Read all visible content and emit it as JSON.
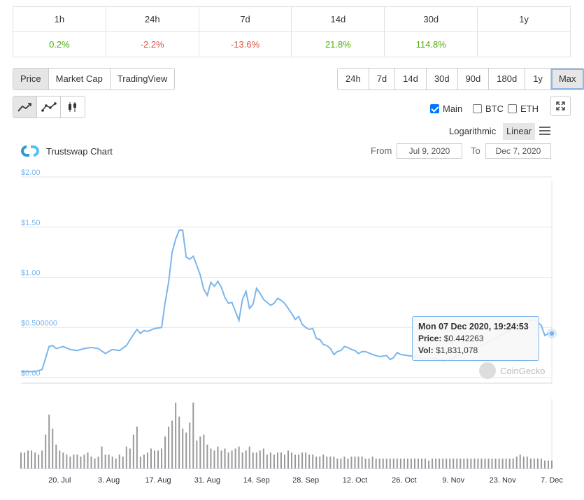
{
  "performance": {
    "headers": [
      "1h",
      "24h",
      "7d",
      "14d",
      "30d",
      "1y"
    ],
    "values": [
      "0.2%",
      "-2.2%",
      "-13.6%",
      "21.8%",
      "114.8%",
      ""
    ],
    "directions": [
      "up",
      "down",
      "down",
      "up",
      "up",
      "none"
    ]
  },
  "view_tabs": [
    "Price",
    "Market Cap",
    "TradingView"
  ],
  "range_tabs": [
    "24h",
    "7d",
    "14d",
    "30d",
    "90d",
    "180d",
    "1y",
    "Max"
  ],
  "chart_type_icons": [
    "line-chart-icon",
    "line-markers-icon",
    "candlestick-icon"
  ],
  "checkboxes": [
    {
      "label": "Main",
      "checked": true
    },
    {
      "label": "BTC",
      "checked": false
    },
    {
      "label": "ETH",
      "checked": false
    }
  ],
  "scale": {
    "log_label": "Logarithmic",
    "linear_label": "Linear"
  },
  "chart_title": "Trustswap Chart",
  "from_label": "From",
  "to_label": "To",
  "from_date": "Jul 9, 2020",
  "to_date": "Dec 7, 2020",
  "watermark": "CoinGecko",
  "tooltip": {
    "date": "Mon 07 Dec 2020, 19:24:53",
    "price_label": "Price:",
    "price": "$0.442263",
    "vol_label": "Vol:",
    "vol": "$1,831,078"
  },
  "colors": {
    "line": "#7cb5ec",
    "volume": "#999999",
    "up": "#4eaf0a",
    "down": "#e15241"
  },
  "chart_data": {
    "type": "line",
    "ylim": [
      0,
      2.0
    ],
    "y_tick_labels": [
      "$0.00",
      "$0.500000",
      "$1.00",
      "$1.50",
      "$2.00"
    ],
    "y_tick_values": [
      0,
      0.5,
      1.0,
      1.5,
      2.0
    ],
    "x_tick_labels": [
      "20. Jul",
      "3. Aug",
      "17. Aug",
      "31. Aug",
      "14. Sep",
      "28. Sep",
      "12. Oct",
      "26. Oct",
      "9. Nov",
      "23. Nov",
      "7. Dec"
    ],
    "x_tick_days": [
      11,
      25,
      39,
      53,
      67,
      81,
      95,
      109,
      123,
      137,
      151
    ],
    "series": [
      {
        "values": [
          [
            0,
            0.06
          ],
          [
            2,
            0.06
          ],
          [
            4,
            0.06
          ],
          [
            6,
            0.08
          ],
          [
            8,
            0.31
          ],
          [
            9,
            0.32
          ],
          [
            10,
            0.29
          ],
          [
            12,
            0.31
          ],
          [
            14,
            0.28
          ],
          [
            16,
            0.27
          ],
          [
            18,
            0.29
          ],
          [
            20,
            0.3
          ],
          [
            22,
            0.29
          ],
          [
            24,
            0.24
          ],
          [
            26,
            0.28
          ],
          [
            28,
            0.27
          ],
          [
            30,
            0.32
          ],
          [
            32,
            0.43
          ],
          [
            33,
            0.48
          ],
          [
            34,
            0.44
          ],
          [
            35,
            0.47
          ],
          [
            36,
            0.46
          ],
          [
            38,
            0.49
          ],
          [
            40,
            0.5
          ],
          [
            41,
            0.75
          ],
          [
            42,
            0.95
          ],
          [
            43,
            1.25
          ],
          [
            44,
            1.38
          ],
          [
            45,
            1.47
          ],
          [
            46,
            1.47
          ],
          [
            47,
            1.2
          ],
          [
            48,
            1.18
          ],
          [
            49,
            1.21
          ],
          [
            50,
            1.12
          ],
          [
            51,
            1.02
          ],
          [
            52,
            0.88
          ],
          [
            53,
            0.82
          ],
          [
            54,
            0.95
          ],
          [
            55,
            0.91
          ],
          [
            56,
            0.96
          ],
          [
            57,
            0.9
          ],
          [
            58,
            0.8
          ],
          [
            59,
            0.74
          ],
          [
            60,
            0.75
          ],
          [
            61,
            0.66
          ],
          [
            62,
            0.57
          ],
          [
            63,
            0.78
          ],
          [
            64,
            0.86
          ],
          [
            65,
            0.69
          ],
          [
            66,
            0.73
          ],
          [
            67,
            0.89
          ],
          [
            68,
            0.84
          ],
          [
            69,
            0.78
          ],
          [
            70,
            0.75
          ],
          [
            71,
            0.72
          ],
          [
            72,
            0.74
          ],
          [
            73,
            0.79
          ],
          [
            74,
            0.77
          ],
          [
            75,
            0.74
          ],
          [
            76,
            0.69
          ],
          [
            77,
            0.64
          ],
          [
            78,
            0.58
          ],
          [
            79,
            0.61
          ],
          [
            80,
            0.53
          ],
          [
            81,
            0.5
          ],
          [
            82,
            0.48
          ],
          [
            83,
            0.49
          ],
          [
            84,
            0.39
          ],
          [
            85,
            0.38
          ],
          [
            86,
            0.33
          ],
          [
            87,
            0.32
          ],
          [
            88,
            0.29
          ],
          [
            89,
            0.23
          ],
          [
            90,
            0.26
          ],
          [
            91,
            0.27
          ],
          [
            92,
            0.31
          ],
          [
            93,
            0.3
          ],
          [
            94,
            0.28
          ],
          [
            95,
            0.27
          ],
          [
            96,
            0.24
          ],
          [
            97,
            0.26
          ],
          [
            98,
            0.26
          ],
          [
            100,
            0.23
          ],
          [
            102,
            0.21
          ],
          [
            104,
            0.22
          ],
          [
            105,
            0.18
          ],
          [
            106,
            0.2
          ],
          [
            107,
            0.25
          ],
          [
            108,
            0.23
          ],
          [
            110,
            0.22
          ],
          [
            112,
            0.21
          ],
          [
            114,
            0.19
          ],
          [
            116,
            0.2
          ],
          [
            118,
            0.19
          ],
          [
            120,
            0.17
          ],
          [
            122,
            0.18
          ],
          [
            124,
            0.22
          ],
          [
            126,
            0.25
          ],
          [
            128,
            0.27
          ],
          [
            130,
            0.3
          ],
          [
            132,
            0.34
          ],
          [
            134,
            0.37
          ],
          [
            136,
            0.41
          ],
          [
            138,
            0.45
          ],
          [
            140,
            0.5
          ],
          [
            142,
            0.52
          ],
          [
            144,
            0.55
          ],
          [
            146,
            0.58
          ],
          [
            148,
            0.52
          ],
          [
            149,
            0.42
          ],
          [
            150,
            0.44
          ],
          [
            151,
            0.44
          ]
        ]
      }
    ],
    "volume": [
      0.08,
      0.08,
      0.09,
      0.09,
      0.08,
      0.07,
      0.09,
      0.17,
      0.27,
      0.2,
      0.12,
      0.09,
      0.08,
      0.07,
      0.06,
      0.07,
      0.07,
      0.06,
      0.07,
      0.08,
      0.06,
      0.05,
      0.06,
      0.11,
      0.07,
      0.07,
      0.06,
      0.05,
      0.07,
      0.06,
      0.11,
      0.1,
      0.17,
      0.21,
      0.06,
      0.07,
      0.08,
      0.1,
      0.09,
      0.09,
      0.1,
      0.16,
      0.21,
      0.24,
      0.33,
      0.26,
      0.2,
      0.18,
      0.23,
      0.33,
      0.14,
      0.16,
      0.17,
      0.12,
      0.1,
      0.09,
      0.11,
      0.09,
      0.1,
      0.08,
      0.09,
      0.1,
      0.11,
      0.08,
      0.09,
      0.11,
      0.08,
      0.08,
      0.09,
      0.1,
      0.07,
      0.08,
      0.07,
      0.08,
      0.08,
      0.07,
      0.09,
      0.08,
      0.07,
      0.07,
      0.08,
      0.08,
      0.07,
      0.07,
      0.06,
      0.06,
      0.07,
      0.06,
      0.06,
      0.06,
      0.05,
      0.05,
      0.06,
      0.05,
      0.06,
      0.06,
      0.06,
      0.06,
      0.05,
      0.05,
      0.06,
      0.05,
      0.05,
      0.05,
      0.05,
      0.05,
      0.05,
      0.05,
      0.05,
      0.05,
      0.05,
      0.05,
      0.05,
      0.05,
      0.05,
      0.05,
      0.04,
      0.05,
      0.05,
      0.05,
      0.05,
      0.05,
      0.05,
      0.05,
      0.05,
      0.05,
      0.05,
      0.05,
      0.05,
      0.05,
      0.05,
      0.05,
      0.05,
      0.05,
      0.05,
      0.05,
      0.05,
      0.05,
      0.05,
      0.05,
      0.05,
      0.06,
      0.07,
      0.06,
      0.06,
      0.05,
      0.05,
      0.05,
      0.05,
      0.04,
      0.04,
      0.04
    ]
  }
}
